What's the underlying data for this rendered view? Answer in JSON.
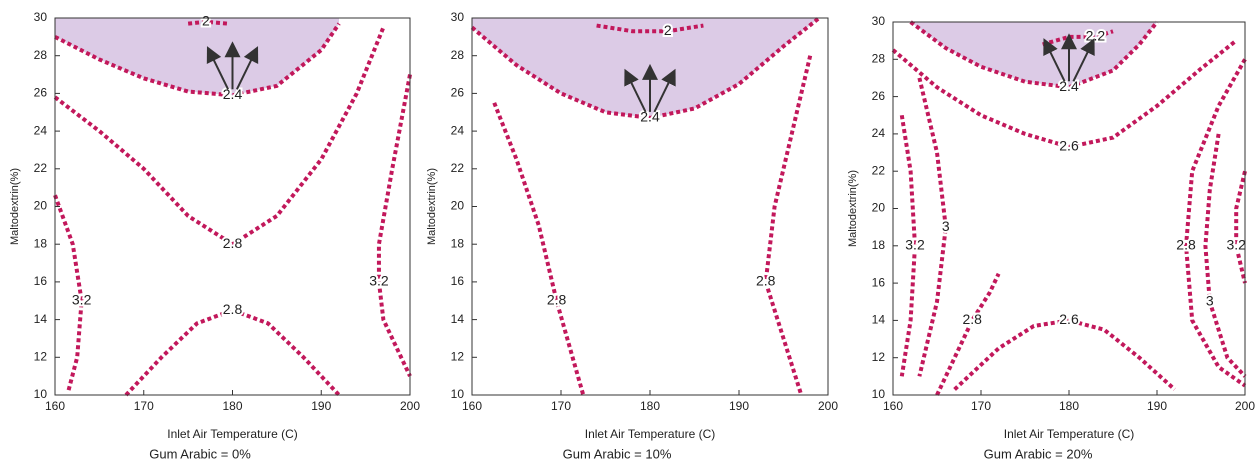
{
  "chart_data": [
    {
      "type": "contour",
      "xlabel": "Inlet Air Temperature (C)",
      "ylabel": "Maltodextrin(%)",
      "caption": "Gum Arabic = 0%",
      "xlim": [
        160,
        200
      ],
      "ylim": [
        10,
        30
      ],
      "xticks": [
        160,
        170,
        180,
        190,
        200
      ],
      "yticks": [
        10,
        12,
        14,
        16,
        18,
        20,
        22,
        24,
        26,
        28,
        30
      ],
      "line_color": "#c2185b",
      "contours": [
        {
          "level": 2,
          "x": [
            175,
            177,
            179.5
          ],
          "y": [
            29.7,
            29.8,
            29.7
          ]
        },
        {
          "level": 2.4,
          "fill": "#dccbe6",
          "x": [
            160,
            165,
            170,
            175,
            180,
            185,
            190,
            192
          ],
          "y": [
            29,
            27.8,
            26.8,
            26.1,
            25.9,
            26.4,
            28.3,
            29.7
          ]
        },
        {
          "level": 2.8,
          "x": [
            160,
            165,
            170,
            175,
            180,
            185,
            190,
            194,
            197
          ],
          "y": [
            25.8,
            24,
            22,
            19.5,
            18,
            19.5,
            22.5,
            26,
            29.5
          ]
        },
        {
          "level": 3.2,
          "x": [
            160,
            162,
            163,
            162.5,
            161.5
          ],
          "y": [
            20.6,
            18,
            15,
            12,
            10.2
          ]
        },
        {
          "level": 3.2,
          "x": [
            200,
            198,
            196.5,
            196.5,
            197,
            200
          ],
          "y": [
            27,
            22,
            18,
            16,
            14,
            11
          ]
        },
        {
          "level": 2.8,
          "x": [
            168,
            172,
            176,
            180,
            184,
            188,
            192
          ],
          "y": [
            10,
            12,
            13.8,
            14.5,
            13.8,
            12,
            10
          ]
        }
      ]
    },
    {
      "type": "contour",
      "xlabel": "Inlet Air Temperature (C)",
      "ylabel": "Maltodextrin(%)",
      "caption": "Gum Arabic = 10%",
      "xlim": [
        160,
        200
      ],
      "ylim": [
        10,
        30
      ],
      "xticks": [
        160,
        170,
        180,
        190,
        200
      ],
      "yticks": [
        10,
        12,
        14,
        16,
        18,
        20,
        22,
        24,
        26,
        28,
        30
      ],
      "line_color": "#c2185b",
      "contours": [
        {
          "level": 2,
          "x": [
            174,
            178,
            182,
            186
          ],
          "y": [
            29.6,
            29.3,
            29.3,
            29.6
          ]
        },
        {
          "level": 2.4,
          "fill": "#dccbe6",
          "x": [
            160,
            165,
            170,
            175,
            180,
            185,
            190,
            195,
            199
          ],
          "y": [
            29.5,
            27.5,
            26,
            25,
            24.7,
            25.2,
            26.5,
            28.5,
            30
          ]
        },
        {
          "level": 2.8,
          "x": [
            162.5,
            165,
            167.5,
            169.5,
            171,
            172.5
          ],
          "y": [
            25.5,
            22.5,
            19,
            15,
            12.5,
            10
          ]
        },
        {
          "level": 2.8,
          "x": [
            198,
            196,
            194,
            193,
            195,
            197
          ],
          "y": [
            28,
            24,
            20,
            16,
            13,
            10
          ]
        }
      ]
    },
    {
      "type": "contour",
      "xlabel": "Inlet Air Temperature (C)",
      "ylabel": "Maltodextrin(%)",
      "caption": "Gum Arabic = 20%",
      "xlim": [
        160,
        200
      ],
      "ylim": [
        10,
        30
      ],
      "xticks": [
        160,
        170,
        180,
        190,
        200
      ],
      "yticks": [
        10,
        12,
        14,
        16,
        18,
        20,
        22,
        24,
        26,
        28,
        30
      ],
      "line_color": "#c2185b",
      "contours": [
        {
          "level": 2.2,
          "x": [
            177,
            180,
            183,
            185
          ],
          "y": [
            28.8,
            29.2,
            29.2,
            29.5
          ]
        },
        {
          "level": 2.4,
          "fill": "#dccbe6",
          "x": [
            162,
            166,
            170,
            175,
            180,
            185,
            188,
            190
          ],
          "y": [
            30,
            28.6,
            27.6,
            26.8,
            26.5,
            27.4,
            28.8,
            30
          ]
        },
        {
          "level": 2.6,
          "x": [
            160,
            165,
            170,
            175,
            180,
            185,
            190,
            195,
            199
          ],
          "y": [
            28.5,
            26.5,
            25,
            24,
            23.3,
            23.8,
            25.5,
            27.5,
            29
          ]
        },
        {
          "level": 2.8,
          "x": [
            200,
            197,
            194,
            193.3,
            194,
            197,
            200
          ],
          "y": [
            28,
            25.5,
            22,
            18,
            14,
            11.5,
            10.5
          ]
        },
        {
          "level": 3,
          "x": [
            197,
            196,
            195.5,
            196,
            198,
            200
          ],
          "y": [
            24,
            21,
            18,
            15,
            12,
            11
          ]
        },
        {
          "level": 3.2,
          "x": [
            200,
            199,
            199,
            200
          ],
          "y": [
            22,
            20,
            18,
            16
          ]
        },
        {
          "level": 3.2,
          "x": [
            161,
            162,
            162.5,
            162,
            161
          ],
          "y": [
            25,
            22,
            18,
            14,
            11
          ]
        },
        {
          "level": 3,
          "x": [
            163,
            165,
            166,
            165,
            163
          ],
          "y": [
            27,
            23,
            19,
            15,
            11
          ]
        },
        {
          "level": 2.8,
          "x": [
            165,
            167,
            169,
            171,
            172
          ],
          "y": [
            10,
            12,
            14,
            15.5,
            16.5
          ]
        },
        {
          "level": 2.6,
          "x": [
            167,
            172,
            176,
            180,
            184,
            188,
            192
          ],
          "y": [
            10.3,
            12.5,
            13.7,
            14,
            13.5,
            12,
            10.3
          ]
        }
      ]
    }
  ]
}
